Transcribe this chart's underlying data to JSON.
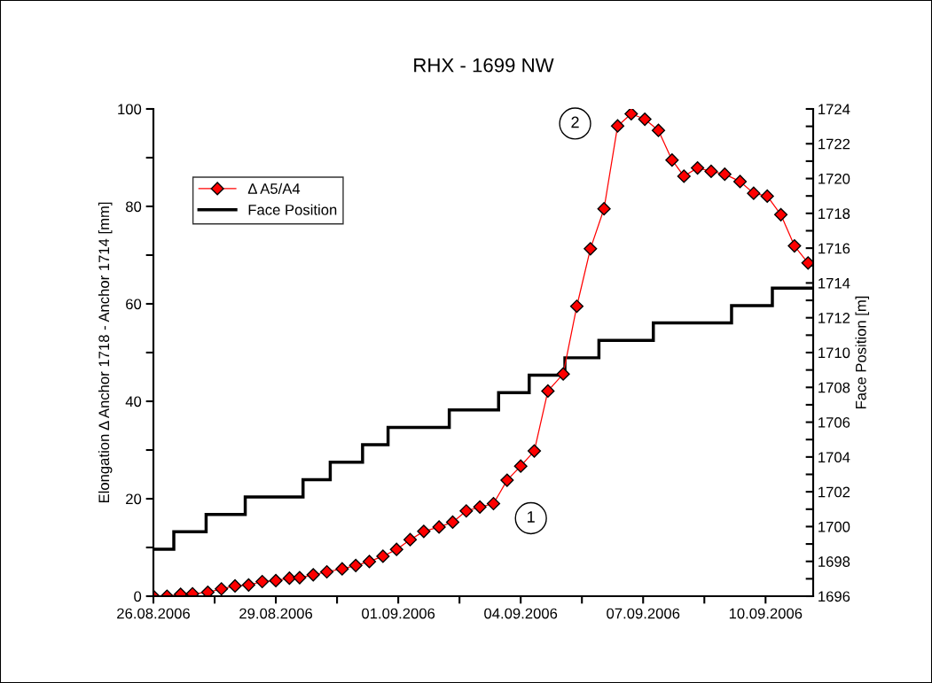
{
  "chart_data": {
    "type": "line",
    "title": "RHX - 1699 NW",
    "ylabel": "Elongation Δ Anchor 1718 - Anchor 1714 [mm]",
    "y2label": "Face Position [m]",
    "xlim": [
      "2006-08-26T00:00",
      "2006-09-11T04:00"
    ],
    "xticks": [
      {
        "value": "2006-08-26T00:00",
        "label": "26.08.2006"
      },
      {
        "value": "2006-08-27T12:00",
        "label": null
      },
      {
        "value": "2006-08-29T00:00",
        "label": "29.08.2006"
      },
      {
        "value": "2006-08-30T12:00",
        "label": null
      },
      {
        "value": "2006-09-01T00:00",
        "label": "01.09.2006"
      },
      {
        "value": "2006-09-02T12:00",
        "label": null
      },
      {
        "value": "2006-09-04T00:00",
        "label": "04.09.2006"
      },
      {
        "value": "2006-09-05T12:00",
        "label": null
      },
      {
        "value": "2006-09-07T00:00",
        "label": "07.09.2006"
      },
      {
        "value": "2006-09-08T12:00",
        "label": null
      },
      {
        "value": "2006-09-10T00:00",
        "label": "10.09.2006"
      }
    ],
    "ylim": [
      0,
      100
    ],
    "yticks": [
      0,
      {
        "value": 10,
        "label": null
      },
      20,
      {
        "value": 30,
        "label": null
      },
      40,
      {
        "value": 50,
        "label": null
      },
      60,
      {
        "value": 70,
        "label": null
      },
      80,
      {
        "value": 90,
        "label": null
      },
      100
    ],
    "y2lim": [
      1696,
      1724
    ],
    "y2ticks": [
      1696,
      {
        "value": 1697,
        "label": null
      },
      1698,
      {
        "value": 1699,
        "label": null
      },
      1700,
      {
        "value": 1701,
        "label": null
      },
      1702,
      {
        "value": 1703,
        "label": null
      },
      1704,
      {
        "value": 1705,
        "label": null
      },
      1706,
      {
        "value": 1707,
        "label": null
      },
      1708,
      {
        "value": 1709,
        "label": null
      },
      1710,
      {
        "value": 1711,
        "label": null
      },
      1712,
      {
        "value": 1713,
        "label": null
      },
      1714,
      {
        "value": 1715,
        "label": null
      },
      1716,
      {
        "value": 1717,
        "label": null
      },
      1718,
      {
        "value": 1719,
        "label": null
      },
      1720,
      {
        "value": 1721,
        "label": null
      },
      1722,
      {
        "value": 1723,
        "label": null
      },
      1724
    ],
    "legend": "top left",
    "grid": false,
    "annotations": [
      {
        "text": "1",
        "x": "2006-09-04T06:00",
        "y": 16
      },
      {
        "text": "2",
        "x": "2006-09-05T08:00",
        "y": 97
      }
    ],
    "series": [
      {
        "name": "Δ A5/A4",
        "color": "#ff0000",
        "marker": "diamond",
        "x": [
          "2006-08-26T00:00",
          "2006-08-26T08:00",
          "2006-08-26T16:00",
          "2006-08-26T23:00",
          "2006-08-27T08:00",
          "2006-08-27T16:00",
          "2006-08-28T00:00",
          "2006-08-28T08:00",
          "2006-08-28T16:00",
          "2006-08-29T00:00",
          "2006-08-29T08:00",
          "2006-08-29T14:00",
          "2006-08-29T22:00",
          "2006-08-30T06:00",
          "2006-08-30T15:00",
          "2006-08-30T23:00",
          "2006-08-31T07:00",
          "2006-08-31T15:00",
          "2006-08-31T23:00",
          "2006-09-01T07:00",
          "2006-09-01T15:00",
          "2006-09-02T00:00",
          "2006-09-02T08:00",
          "2006-09-02T16:00",
          "2006-09-03T00:00",
          "2006-09-03T08:00",
          "2006-09-03T16:00",
          "2006-09-04T00:00",
          "2006-09-04T08:00",
          "2006-09-04T16:00",
          "2006-09-05T01:00",
          "2006-09-05T09:00",
          "2006-09-05T17:00",
          "2006-09-06T01:00",
          "2006-09-06T09:00",
          "2006-09-06T17:00",
          "2006-09-07T01:00",
          "2006-09-07T09:00",
          "2006-09-07T17:00",
          "2006-09-08T00:00",
          "2006-09-08T08:00",
          "2006-09-08T16:00",
          "2006-09-09T00:00",
          "2006-09-09T09:00",
          "2006-09-09T17:00",
          "2006-09-10T01:00",
          "2006-09-10T09:00",
          "2006-09-10T17:00",
          "2006-09-11T01:00"
        ],
        "values": [
          0,
          0,
          0.4,
          0.5,
          0.8,
          1.5,
          2.1,
          2.3,
          3.0,
          3.2,
          3.7,
          3.8,
          4.4,
          5.0,
          5.6,
          6.3,
          7.1,
          8.2,
          9.6,
          11.6,
          13.3,
          14.2,
          15.2,
          17.5,
          18.3,
          19.0,
          23.8,
          26.7,
          29.8,
          42.1,
          45.6,
          59.5,
          71.3,
          79.5,
          96.5,
          99.0,
          97.9,
          95.6,
          89.5,
          86.2,
          87.9,
          87.2,
          86.6,
          85.1,
          82.7,
          82.1,
          78.3,
          71.9,
          68.4
        ]
      },
      {
        "name": "Face Position",
        "type": "step",
        "axis": "y2",
        "color": "#000000",
        "marker": "none",
        "x": [
          "2006-08-26T00:00",
          "2006-08-26T12:00",
          "2006-08-27T07:00",
          "2006-08-28T06:00",
          "2006-08-29T16:00",
          "2006-08-30T08:00",
          "2006-08-31T03:00",
          "2006-08-31T18:00",
          "2006-09-02T06:00",
          "2006-09-03T11:00",
          "2006-09-04T05:00",
          "2006-09-05T02:00",
          "2006-09-05T22:00",
          "2006-09-07T06:00",
          "2006-09-09T04:00",
          "2006-09-10T04:00",
          "2006-09-11T04:00"
        ],
        "values": [
          1698.7,
          1699.7,
          1700.7,
          1701.7,
          1702.7,
          1703.7,
          1704.7,
          1705.7,
          1706.7,
          1707.7,
          1708.7,
          1709.7,
          1710.7,
          1711.7,
          1712.7,
          1713.7,
          1713.7
        ]
      }
    ]
  }
}
